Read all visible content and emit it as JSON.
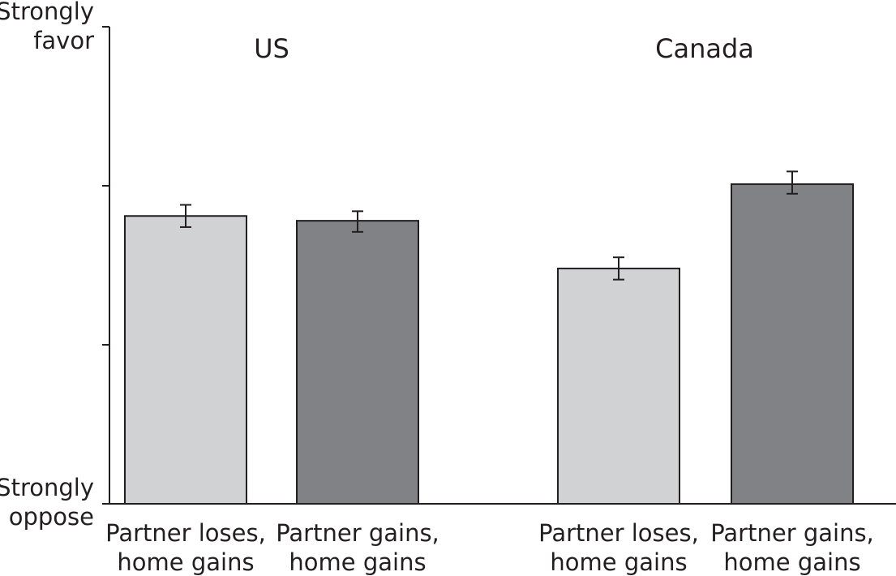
{
  "chart_data": {
    "type": "bar",
    "ylabel_top": [
      "Strongly",
      "favor"
    ],
    "ylabel_bottom": [
      "Strongly",
      "oppose"
    ],
    "ylim": [
      1,
      4
    ],
    "grid": false,
    "groups": [
      {
        "title": "US",
        "bars": [
          {
            "label": [
              "Partner loses,",
              "home gains"
            ],
            "value": 2.81,
            "error": [
              2.74,
              2.88
            ],
            "color": "#d1d2d4"
          },
          {
            "label": [
              "Partner gains,",
              "home gains"
            ],
            "value": 2.78,
            "error": [
              2.71,
              2.84
            ],
            "color": "#808285"
          }
        ]
      },
      {
        "title": "Canada",
        "bars": [
          {
            "label": [
              "Partner loses,",
              "home gains"
            ],
            "value": 2.48,
            "error": [
              2.41,
              2.55
            ],
            "color": "#d1d2d4"
          },
          {
            "label": [
              "Partner gains,",
              "home gains"
            ],
            "value": 3.01,
            "error": [
              2.95,
              3.09
            ],
            "color": "#808285"
          }
        ]
      }
    ]
  }
}
